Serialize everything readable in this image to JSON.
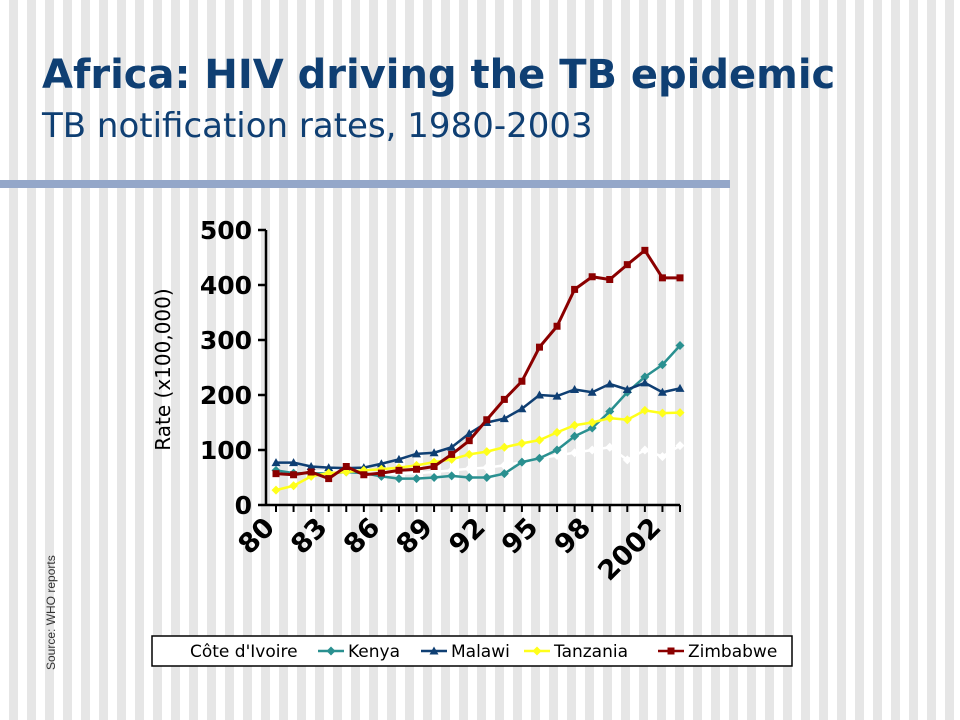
{
  "slide": {
    "title": "Africa: HIV driving the TB epidemic",
    "subtitle": "TB notification rates, 1980-2003",
    "source": "Source: WHO reports"
  },
  "chart_data": {
    "type": "line",
    "title": "",
    "xlabel": "",
    "ylabel": "Rate (x100,000)",
    "ylim": [
      0,
      500
    ],
    "yticks": [
      0,
      100,
      200,
      300,
      400,
      500
    ],
    "x": [
      1980,
      1981,
      1982,
      1983,
      1984,
      1985,
      1986,
      1987,
      1988,
      1989,
      1990,
      1991,
      1992,
      1993,
      1994,
      1995,
      1996,
      1997,
      1998,
      1999,
      2000,
      2001,
      2002,
      2003
    ],
    "xtick_labels": [
      {
        "x": 1980,
        "label": "80"
      },
      {
        "x": 1983,
        "label": "83"
      },
      {
        "x": 1986,
        "label": "86"
      },
      {
        "x": 1989,
        "label": "89"
      },
      {
        "x": 1992,
        "label": "92"
      },
      {
        "x": 1995,
        "label": "95"
      },
      {
        "x": 1998,
        "label": "98"
      },
      {
        "x": 2002,
        "label": "2002"
      }
    ],
    "grid": false,
    "legend_position": "bottom",
    "series": [
      {
        "name": "Côte d'Ivoire",
        "color": "#ffffff",
        "marker": "diamond",
        "values": [
          60,
          58,
          60,
          63,
          65,
          62,
          55,
          57,
          58,
          60,
          63,
          66,
          68,
          72,
          78,
          85,
          90,
          95,
          100,
          105,
          82,
          100,
          88,
          108
        ]
      },
      {
        "name": "Kenya",
        "color": "#2a9090",
        "marker": "diamond",
        "values": [
          63,
          58,
          58,
          57,
          60,
          58,
          52,
          48,
          48,
          50,
          53,
          50,
          50,
          57,
          78,
          85,
          100,
          125,
          140,
          170,
          205,
          233,
          255,
          290
        ]
      },
      {
        "name": "Malawi",
        "color": "#0f3f73",
        "marker": "triangle",
        "values": [
          77,
          77,
          70,
          68,
          67,
          68,
          75,
          83,
          93,
          95,
          105,
          130,
          150,
          157,
          175,
          200,
          198,
          210,
          205,
          220,
          210,
          222,
          205,
          212
        ]
      },
      {
        "name": "Tanzania",
        "color": "#ffff1a",
        "marker": "diamond",
        "values": [
          27,
          35,
          52,
          58,
          60,
          63,
          65,
          68,
          72,
          78,
          83,
          92,
          97,
          105,
          112,
          118,
          132,
          145,
          150,
          158,
          155,
          172,
          167,
          168
        ]
      },
      {
        "name": "Zimbabwe",
        "color": "#8b0000",
        "marker": "square",
        "values": [
          57,
          55,
          60,
          48,
          70,
          55,
          58,
          63,
          65,
          70,
          92,
          117,
          155,
          192,
          225,
          287,
          325,
          392,
          415,
          410,
          437,
          463,
          413,
          413
        ]
      }
    ]
  }
}
